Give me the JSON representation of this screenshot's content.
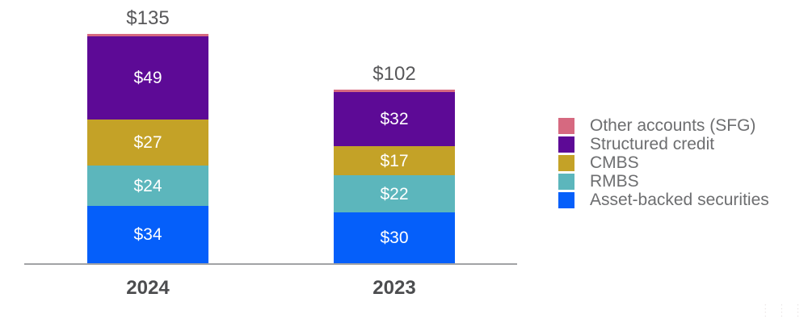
{
  "chart_data": {
    "type": "bar",
    "subtype": "stacked",
    "title": "",
    "xlabel": "",
    "ylabel": "",
    "grid": false,
    "legend_position": "right",
    "categories": [
      "2024",
      "2023"
    ],
    "totals": [
      "$135",
      "$102"
    ],
    "series": [
      {
        "name": "Other accounts (SFG)",
        "color": "#d66980",
        "values": [
          1,
          1
        ],
        "labels": [
          "",
          ""
        ]
      },
      {
        "name": "Structured credit",
        "color": "#5d0a96",
        "values": [
          49,
          32
        ],
        "labels": [
          "$49",
          "$32"
        ]
      },
      {
        "name": "CMBS",
        "color": "#c4a227",
        "values": [
          27,
          17
        ],
        "labels": [
          "$27",
          "$17"
        ]
      },
      {
        "name": "RMBS",
        "color": "#5cb6bc",
        "values": [
          24,
          22
        ],
        "labels": [
          "$24",
          "$22"
        ]
      },
      {
        "name": "Asset-backed securities",
        "color": "#055ffa",
        "values": [
          34,
          30
        ],
        "labels": [
          "$34",
          "$30"
        ]
      }
    ]
  },
  "axis": {
    "color": "#a2a3a5"
  },
  "watermark": {
    "rows": [
      ": : :",
      ": : :"
    ]
  }
}
